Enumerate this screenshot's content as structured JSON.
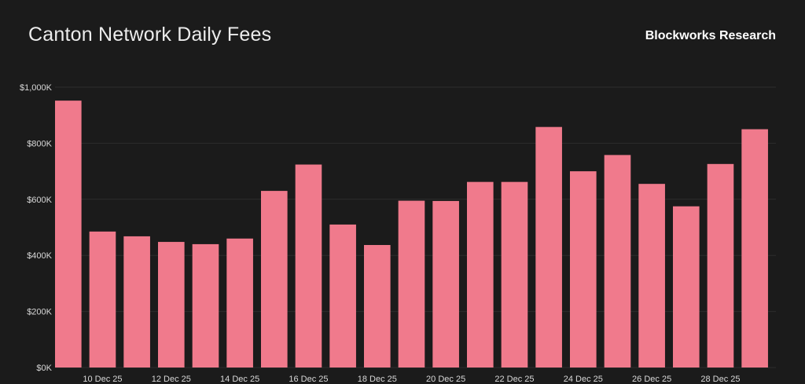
{
  "header": {
    "title": "Canton Network Daily Fees",
    "brand": "Blockworks Research"
  },
  "colors": {
    "background": "#1b1b1b",
    "bar": "#f07a8c",
    "grid": "#2c2c2c"
  },
  "chart_data": {
    "type": "bar",
    "title": "Canton Network Daily Fees",
    "xlabel": "",
    "ylabel": "",
    "ylim": [
      0,
      1000000
    ],
    "grid": true,
    "y_ticks": [
      {
        "value": 0,
        "label": "$0K"
      },
      {
        "value": 200000,
        "label": "$200K"
      },
      {
        "value": 400000,
        "label": "$400K"
      },
      {
        "value": 600000,
        "label": "$600K"
      },
      {
        "value": 800000,
        "label": "$800K"
      },
      {
        "value": 1000000,
        "label": "$1,000K"
      }
    ],
    "categories": [
      "9 Dec 25",
      "10 Dec 25",
      "11 Dec 25",
      "12 Dec 25",
      "13 Dec 25",
      "14 Dec 25",
      "15 Dec 25",
      "16 Dec 25",
      "17 Dec 25",
      "18 Dec 25",
      "19 Dec 25",
      "20 Dec 25",
      "21 Dec 25",
      "22 Dec 25",
      "23 Dec 25",
      "24 Dec 25",
      "25 Dec 25",
      "26 Dec 25",
      "27 Dec 25",
      "28 Dec 25",
      "29 Dec 25"
    ],
    "x_tick_labels": [
      "10 Dec 25",
      "12 Dec 25",
      "14 Dec 25",
      "16 Dec 25",
      "18 Dec 25",
      "20 Dec 25",
      "22 Dec 25",
      "24 Dec 25",
      "26 Dec 25",
      "28 Dec 25"
    ],
    "values": [
      952000,
      485000,
      468000,
      448000,
      440000,
      460000,
      630000,
      724000,
      510000,
      437000,
      595000,
      594000,
      662000,
      662000,
      858000,
      700000,
      758000,
      655000,
      575000,
      726000,
      850000
    ]
  }
}
